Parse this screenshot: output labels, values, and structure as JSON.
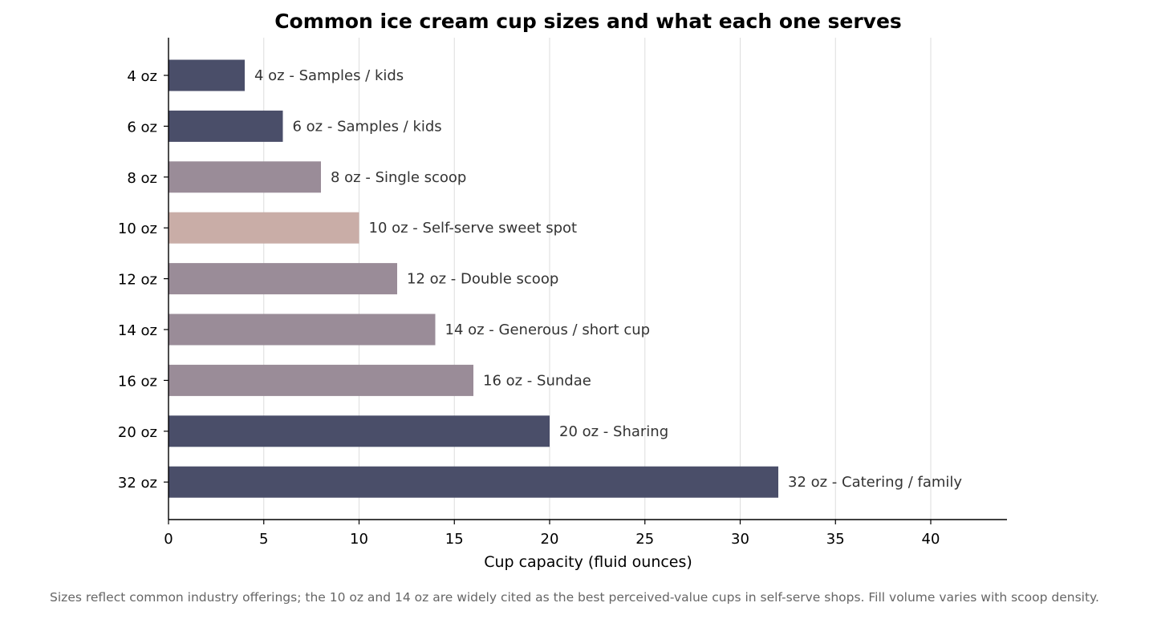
{
  "chart_data": {
    "type": "bar",
    "orientation": "horizontal",
    "title": "Common ice cream cup sizes and what each one serves",
    "xlabel": "Cup capacity (fluid ounces)",
    "ylabel": "",
    "xlim": [
      0,
      44
    ],
    "xticks": [
      0,
      5,
      10,
      15,
      20,
      25,
      30,
      35,
      40
    ],
    "grid": "vertical",
    "legend": "none",
    "categories": [
      "4 oz",
      "6 oz",
      "8 oz",
      "10 oz",
      "12 oz",
      "14 oz",
      "16 oz",
      "20 oz",
      "32 oz"
    ],
    "values": [
      4,
      6,
      8,
      10,
      12,
      14,
      16,
      20,
      32
    ],
    "bar_labels": [
      "4 oz  -  Samples / kids",
      "6 oz  -  Samples / kids",
      "8 oz  -  Single scoop",
      "10 oz  -  Self-serve sweet spot",
      "12 oz  -  Double scoop",
      "14 oz  -  Generous / short cup",
      "16 oz  -  Sundae",
      "20 oz  -  Sharing",
      "32 oz  -  Catering / family"
    ],
    "bar_colors": [
      "#4a4e69",
      "#4a4e69",
      "#9a8c98",
      "#c9ada7",
      "#9a8c98",
      "#9a8c98",
      "#9a8c98",
      "#4a4e69",
      "#4a4e69"
    ],
    "caption": "Sizes reflect common industry offerings; the 10 oz and 14 oz are widely cited as the best perceived-value cups in self-serve shops. Fill volume varies with scoop density."
  }
}
